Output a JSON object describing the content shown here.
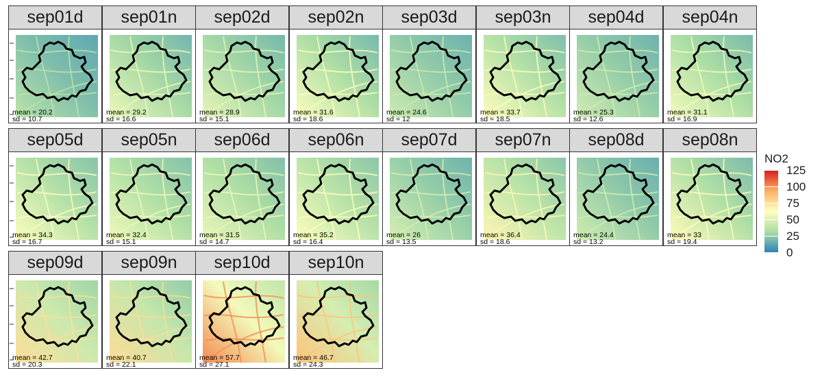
{
  "chart_data": {
    "type": "heatmap",
    "title": "",
    "fill_label": "NO2",
    "colorscale": [
      "#2b83ba",
      "#abdda4",
      "#ffffbf",
      "#fdae61",
      "#d7191c"
    ],
    "colorbar_ticks": [
      "125",
      "100",
      "75",
      "50",
      "25",
      "0"
    ],
    "color_range": [
      0,
      125
    ],
    "panels": [
      {
        "label": "sep01d",
        "mean": "mean = 20.2",
        "sd": "sd = 10.7",
        "mean_value": 20.2,
        "sd_value": 10.7
      },
      {
        "label": "sep01n",
        "mean": "mean = 29.2",
        "sd": "sd = 16.6",
        "mean_value": 29.2,
        "sd_value": 16.6
      },
      {
        "label": "sep02d",
        "mean": "mean = 28.9",
        "sd": "sd = 15.1",
        "mean_value": 28.9,
        "sd_value": 15.1
      },
      {
        "label": "sep02n",
        "mean": "mean = 31.6",
        "sd": "sd = 18.6",
        "mean_value": 31.6,
        "sd_value": 18.6
      },
      {
        "label": "sep03d",
        "mean": "mean = 24.6",
        "sd": "sd = 12",
        "mean_value": 24.6,
        "sd_value": 12
      },
      {
        "label": "sep03n",
        "mean": "mean = 33.7",
        "sd": "sd = 18.5",
        "mean_value": 33.7,
        "sd_value": 18.5
      },
      {
        "label": "sep04d",
        "mean": "mean = 25.3",
        "sd": "sd = 12.6",
        "mean_value": 25.3,
        "sd_value": 12.6
      },
      {
        "label": "sep04n",
        "mean": "mean = 31.1",
        "sd": "sd = 16.9",
        "mean_value": 31.1,
        "sd_value": 16.9
      },
      {
        "label": "sep05d",
        "mean": "mean = 34.3",
        "sd": "sd = 16.7",
        "mean_value": 34.3,
        "sd_value": 16.7
      },
      {
        "label": "sep05n",
        "mean": "mean = 32.4",
        "sd": "sd = 15.1",
        "mean_value": 32.4,
        "sd_value": 15.1
      },
      {
        "label": "sep06d",
        "mean": "mean = 31.5",
        "sd": "sd = 14.7",
        "mean_value": 31.5,
        "sd_value": 14.7
      },
      {
        "label": "sep06n",
        "mean": "mean = 35.2",
        "sd": "sd = 16.4",
        "mean_value": 35.2,
        "sd_value": 16.4
      },
      {
        "label": "sep07d",
        "mean": "mean = 26",
        "sd": "sd = 13.5",
        "mean_value": 26,
        "sd_value": 13.5
      },
      {
        "label": "sep07n",
        "mean": "mean = 36.4",
        "sd": "sd = 18.6",
        "mean_value": 36.4,
        "sd_value": 18.6
      },
      {
        "label": "sep08d",
        "mean": "mean = 24.4",
        "sd": "sd = 13.2",
        "mean_value": 24.4,
        "sd_value": 13.2
      },
      {
        "label": "sep08n",
        "mean": "mean = 33",
        "sd": "sd = 19.4",
        "mean_value": 33,
        "sd_value": 19.4
      },
      {
        "label": "sep09d",
        "mean": "mean = 42.7",
        "sd": "sd = 20.3",
        "mean_value": 42.7,
        "sd_value": 20.3
      },
      {
        "label": "sep09n",
        "mean": "mean = 40.7",
        "sd": "sd = 22.1",
        "mean_value": 40.7,
        "sd_value": 22.1
      },
      {
        "label": "sep10d",
        "mean": "mean = 57.7",
        "sd": "sd = 27.1",
        "mean_value": 57.7,
        "sd_value": 27.1
      },
      {
        "label": "sep10n",
        "mean": "mean = 46.7",
        "sd": "sd = 24.3",
        "mean_value": 46.7,
        "sd_value": 24.3
      }
    ]
  }
}
